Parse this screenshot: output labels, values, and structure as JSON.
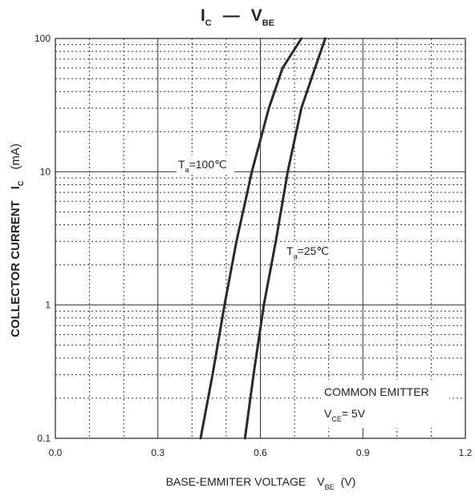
{
  "chart_data": {
    "type": "line",
    "title": {
      "main": "I",
      "main_sub": "C",
      "sep": "—",
      "right": "V",
      "right_sub": "BE"
    },
    "xlabel": {
      "text": "BASE-EMMITER VOLTAGE",
      "var": "V",
      "var_sub": "BE",
      "unit": "(V)"
    },
    "ylabel": {
      "text": "COLLECTOR CURRENT",
      "var": "I",
      "var_sub": "C",
      "unit": "(mA)"
    },
    "x_scale": "linear",
    "y_scale": "log",
    "xlim": [
      0.0,
      1.2
    ],
    "ylim": [
      0.1,
      100
    ],
    "x_ticks": [
      "0.0",
      "0.3",
      "0.6",
      "0.9",
      "1.2"
    ],
    "y_ticks": [
      "0.1",
      "1",
      "10",
      "100"
    ],
    "grid": true,
    "series": [
      {
        "name": "Ta=100°C",
        "label": {
          "main": "T",
          "sub": "a",
          "rest": "=100℃"
        },
        "points": [
          [
            0.425,
            0.1
          ],
          [
            0.46,
            0.3
          ],
          [
            0.495,
            1
          ],
          [
            0.53,
            3
          ],
          [
            0.575,
            10
          ],
          [
            0.625,
            30
          ],
          [
            0.665,
            60
          ],
          [
            0.72,
            100
          ]
        ]
      },
      {
        "name": "Ta=25°C",
        "label": {
          "main": "T",
          "sub": "a",
          "rest": "=25℃"
        },
        "points": [
          [
            0.555,
            0.1
          ],
          [
            0.58,
            0.3
          ],
          [
            0.61,
            1
          ],
          [
            0.645,
            3
          ],
          [
            0.68,
            10
          ],
          [
            0.72,
            30
          ],
          [
            0.76,
            60
          ],
          [
            0.79,
            100
          ]
        ]
      }
    ],
    "annotation": {
      "line1": "COMMON EMITTER",
      "v": "V",
      "v_sub": "CE",
      "rest": "= 5V"
    }
  }
}
